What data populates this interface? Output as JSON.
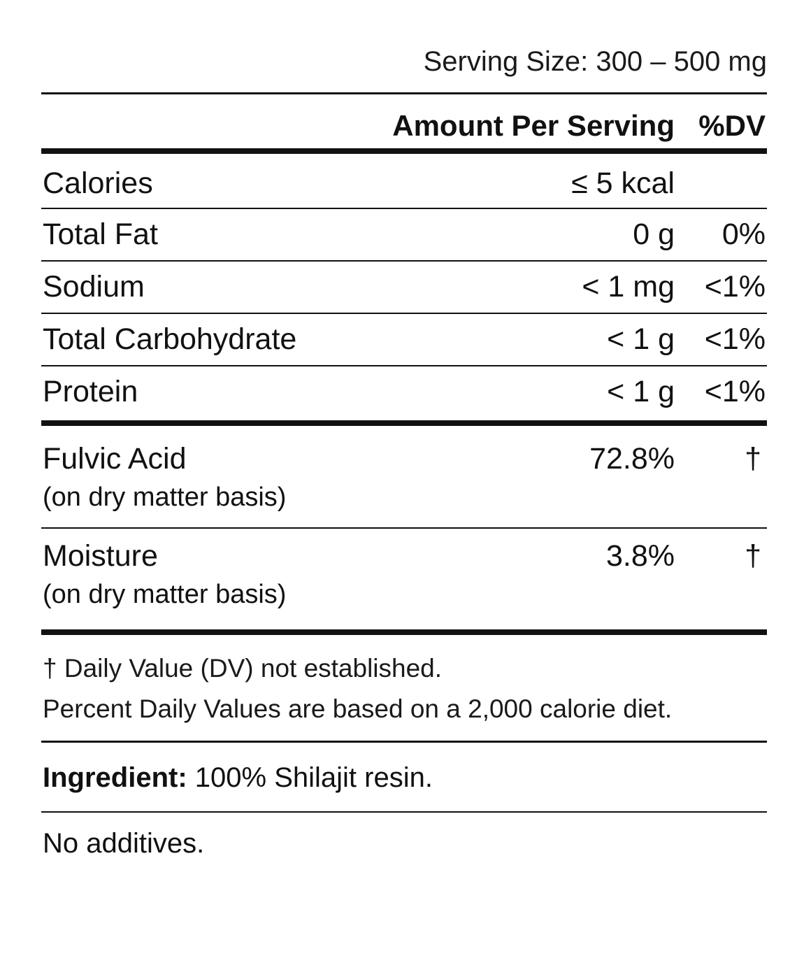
{
  "serving_size": "Serving Size: 300 – 500 mg",
  "header": {
    "amount": "Amount Per Serving",
    "dv": "%DV"
  },
  "nutrients": [
    {
      "name": "Calories",
      "amount": "≤ 5 kcal",
      "dv": ""
    },
    {
      "name": "Total Fat",
      "amount": "0 g",
      "dv": "0%"
    },
    {
      "name": "Sodium",
      "amount": "< 1 mg",
      "dv": "<1%"
    },
    {
      "name": "Total Carbohydrate",
      "amount": "< 1 g",
      "dv": "<1%"
    },
    {
      "name": "Protein",
      "amount": "< 1 g",
      "dv": "<1%"
    }
  ],
  "compounds": [
    {
      "name": "Fulvic Acid",
      "sub": "(on dry matter basis)",
      "amount": "72.8%",
      "dv": "†"
    },
    {
      "name": "Moisture",
      "sub": "(on dry matter basis)",
      "amount": "3.8%",
      "dv": "†"
    }
  ],
  "notes": [
    "† Daily Value (DV) not established.",
    "Percent Daily Values are based on a 2,000 calorie diet."
  ],
  "ingredient": {
    "label": "Ingredient:",
    "value": " 100% Shilajit resin."
  },
  "additives": "No additives."
}
